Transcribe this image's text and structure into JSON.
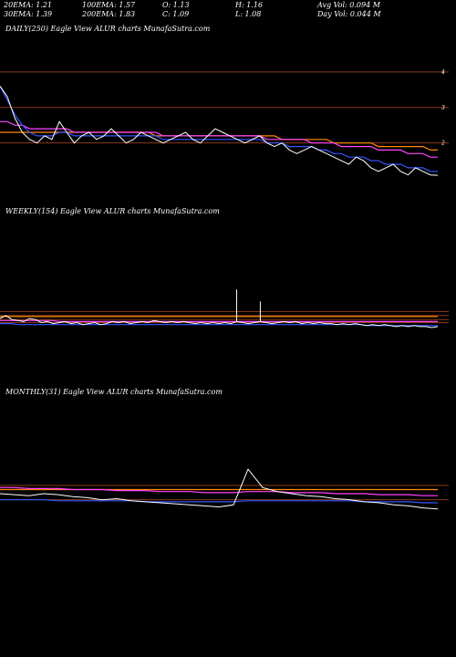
{
  "stats": {
    "ema20": "20EMA: 1.21",
    "ema100": "100EMA: 1.57",
    "open": "O: 1.13",
    "high": "H: 1.16",
    "avg_vol": "Avg Vol: 0.094  M",
    "ema30": "30EMA: 1.39",
    "ema200": "200EMA: 1.83",
    "close": "C: 1.09",
    "low": "L: 1.08",
    "day_vol": "Day Vol: 0.044  M"
  },
  "panels": {
    "daily_title": "DAILY(250) Eagle   View  ALUR charts MunafaSutra.com",
    "weekly_title": "WEEKLY(154) Eagle   View  ALUR charts MunafaSutra.com",
    "monthly_title": "MONTHLY(31) Eagle   View  ALUR charts MunafaSutra.com"
  },
  "colors": {
    "price": "#ffffff",
    "ema_blue": "#3355ff",
    "ema_magenta": "#ff44ff",
    "ema_orange": "#ff8800",
    "level_line": "#8b3a1a"
  },
  "chart_data": [
    {
      "type": "line",
      "panel": "daily",
      "ylim": [
        0.5,
        5
      ],
      "yticks": [
        "4",
        "3",
        "2"
      ],
      "ytick_values": [
        4,
        3,
        2
      ],
      "series": [
        {
          "key": "price",
          "values": [
            3.6,
            3.3,
            2.7,
            2.3,
            2.1,
            2.0,
            2.2,
            2.1,
            2.6,
            2.3,
            2.0,
            2.2,
            2.3,
            2.1,
            2.2,
            2.4,
            2.2,
            2.0,
            2.1,
            2.3,
            2.2,
            2.1,
            2.0,
            2.1,
            2.2,
            2.3,
            2.1,
            2.0,
            2.2,
            2.4,
            2.3,
            2.2,
            2.1,
            2.0,
            2.1,
            2.2,
            2.0,
            1.9,
            2.0,
            1.8,
            1.7,
            1.8,
            1.9,
            1.8,
            1.7,
            1.6,
            1.5,
            1.4,
            1.6,
            1.5,
            1.3,
            1.2,
            1.3,
            1.4,
            1.2,
            1.1,
            1.3,
            1.2,
            1.1,
            1.09
          ]
        },
        {
          "key": "ema_blue",
          "values": [
            3.6,
            3.2,
            2.8,
            2.5,
            2.3,
            2.2,
            2.2,
            2.2,
            2.3,
            2.3,
            2.2,
            2.2,
            2.2,
            2.2,
            2.2,
            2.2,
            2.2,
            2.2,
            2.2,
            2.2,
            2.2,
            2.2,
            2.1,
            2.1,
            2.1,
            2.1,
            2.1,
            2.1,
            2.1,
            2.1,
            2.1,
            2.1,
            2.1,
            2.1,
            2.1,
            2.1,
            2.0,
            2.0,
            2.0,
            1.9,
            1.9,
            1.9,
            1.9,
            1.8,
            1.8,
            1.7,
            1.7,
            1.6,
            1.6,
            1.6,
            1.5,
            1.5,
            1.4,
            1.4,
            1.4,
            1.3,
            1.3,
            1.3,
            1.2,
            1.2
          ]
        },
        {
          "key": "ema_magenta",
          "values": [
            2.6,
            2.6,
            2.5,
            2.5,
            2.4,
            2.4,
            2.4,
            2.4,
            2.4,
            2.4,
            2.3,
            2.3,
            2.3,
            2.3,
            2.3,
            2.3,
            2.3,
            2.3,
            2.3,
            2.3,
            2.3,
            2.3,
            2.2,
            2.2,
            2.2,
            2.2,
            2.2,
            2.2,
            2.2,
            2.2,
            2.2,
            2.2,
            2.2,
            2.2,
            2.2,
            2.2,
            2.1,
            2.1,
            2.1,
            2.1,
            2.1,
            2.1,
            2.0,
            2.0,
            2.0,
            2.0,
            1.9,
            1.9,
            1.9,
            1.9,
            1.9,
            1.8,
            1.8,
            1.8,
            1.8,
            1.7,
            1.7,
            1.7,
            1.6,
            1.6
          ]
        },
        {
          "key": "ema_orange",
          "values": [
            2.3,
            2.3,
            2.3,
            2.3,
            2.3,
            2.3,
            2.3,
            2.3,
            2.3,
            2.3,
            2.3,
            2.3,
            2.3,
            2.3,
            2.3,
            2.3,
            2.3,
            2.3,
            2.3,
            2.3,
            2.3,
            2.2,
            2.2,
            2.2,
            2.2,
            2.2,
            2.2,
            2.2,
            2.2,
            2.2,
            2.2,
            2.2,
            2.2,
            2.2,
            2.2,
            2.2,
            2.2,
            2.2,
            2.1,
            2.1,
            2.1,
            2.1,
            2.1,
            2.1,
            2.1,
            2.0,
            2.0,
            2.0,
            2.0,
            2.0,
            2.0,
            1.9,
            1.9,
            1.9,
            1.9,
            1.9,
            1.9,
            1.9,
            1.8,
            1.8
          ]
        }
      ],
      "levels": [
        4,
        3,
        2
      ]
    },
    {
      "type": "line",
      "panel": "weekly",
      "ylim": [
        0,
        12
      ],
      "series": [
        {
          "key": "price",
          "values": [
            1.9,
            2.2,
            1.8,
            1.7,
            1.6,
            1.9,
            1.8,
            1.5,
            1.6,
            1.4,
            1.5,
            1.6,
            1.4,
            1.5,
            1.3,
            1.4,
            1.5,
            1.3,
            1.4,
            1.6,
            1.5,
            1.6,
            1.4,
            1.5,
            1.6,
            1.5,
            1.7,
            1.6,
            1.5,
            1.6,
            1.5,
            1.6,
            1.5,
            1.4,
            1.5,
            1.4,
            1.5,
            1.4,
            1.5,
            1.4,
            1.6,
            1.5,
            1.4,
            1.5,
            1.6,
            1.5,
            1.4,
            1.5,
            1.6,
            1.5,
            1.6,
            1.4,
            1.5,
            1.4,
            1.5,
            1.4,
            1.4,
            1.3,
            1.4,
            1.3,
            1.4,
            1.3,
            1.2,
            1.3,
            1.2,
            1.3,
            1.2,
            1.1,
            1.2,
            1.1,
            1.2,
            1.1,
            1.1,
            1.0,
            1.1
          ]
        },
        {
          "key": "ema_blue",
          "values": [
            1.4,
            1.4,
            1.4,
            1.3,
            1.3,
            1.3,
            1.3,
            1.3,
            1.3,
            1.3,
            1.3,
            1.3,
            1.3,
            1.3,
            1.3,
            1.3,
            1.3,
            1.3,
            1.3,
            1.3,
            1.3,
            1.3,
            1.3,
            1.3,
            1.3,
            1.3,
            1.3,
            1.3,
            1.3,
            1.3,
            1.3,
            1.3,
            1.3,
            1.3,
            1.3,
            1.3,
            1.3,
            1.3,
            1.3,
            1.3,
            1.3,
            1.3,
            1.3,
            1.3,
            1.3,
            1.3,
            1.3,
            1.3,
            1.3,
            1.3,
            1.3,
            1.3,
            1.3,
            1.3,
            1.3,
            1.3,
            1.3,
            1.3,
            1.3,
            1.3,
            1.3,
            1.3,
            1.2,
            1.2,
            1.2,
            1.2,
            1.2,
            1.2,
            1.2,
            1.2,
            1.2,
            1.2,
            1.2,
            1.2,
            1.2
          ]
        },
        {
          "key": "ema_magenta",
          "values": [
            1.7,
            1.7,
            1.7,
            1.7,
            1.7,
            1.7,
            1.7,
            1.7,
            1.7,
            1.7,
            1.6,
            1.6,
            1.6,
            1.6,
            1.6,
            1.6,
            1.6,
            1.6,
            1.6,
            1.6,
            1.6,
            1.6,
            1.6,
            1.6,
            1.6,
            1.6,
            1.6,
            1.6,
            1.6,
            1.6,
            1.6,
            1.6,
            1.6,
            1.6,
            1.6,
            1.6,
            1.6,
            1.6,
            1.6,
            1.6,
            1.6,
            1.6,
            1.6,
            1.6,
            1.6,
            1.6,
            1.6,
            1.6,
            1.6,
            1.6,
            1.6,
            1.6,
            1.6,
            1.6,
            1.6,
            1.6,
            1.6,
            1.6,
            1.6,
            1.6,
            1.6,
            1.6,
            1.6,
            1.6,
            1.6,
            1.6,
            1.6,
            1.6,
            1.6,
            1.6,
            1.6,
            1.6,
            1.6,
            1.6,
            1.6
          ]
        },
        {
          "key": "ema_orange",
          "values": [
            2.1,
            2.1,
            2.1,
            2.1,
            2.1,
            2.1,
            2.1,
            2.1,
            2.1,
            2.1,
            2.1,
            2.1,
            2.1,
            2.1,
            2.1,
            2.1,
            2.1,
            2.1,
            2.1,
            2.1,
            2.1,
            2.1,
            2.1,
            2.1,
            2.1,
            2.1,
            2.1,
            2.1,
            2.1,
            2.1,
            2.1,
            2.1,
            2.1,
            2.1,
            2.1,
            2.1,
            2.1,
            2.1,
            2.1,
            2.1,
            2.1,
            2.1,
            2.1,
            2.1,
            2.1,
            2.1,
            2.1,
            2.1,
            2.1,
            2.1,
            2.1,
            2.1,
            2.1,
            2.1,
            2.1,
            2.1,
            2.1,
            2.1,
            2.1,
            2.1,
            2.1,
            2.1,
            2.1,
            2.1,
            2.1,
            2.1,
            2.1,
            2.1,
            2.1,
            2.1,
            2.1,
            2.1,
            2.1,
            2.1,
            2.1
          ]
        }
      ],
      "spikes": [
        {
          "index": 40,
          "value": 4.8
        },
        {
          "index": 44,
          "value": 3.6
        }
      ],
      "levels": [
        2.6,
        2.2,
        1.8,
        1.5
      ]
    },
    {
      "type": "line",
      "panel": "monthly",
      "ylim": [
        0,
        12
      ],
      "series": [
        {
          "key": "price",
          "values": [
            2.6,
            2.5,
            2.4,
            2.6,
            2.5,
            2.3,
            2.2,
            2.0,
            2.1,
            1.9,
            1.8,
            1.7,
            1.6,
            1.5,
            1.4,
            1.3,
            1.5,
            5.0,
            3.2,
            2.8,
            2.6,
            2.4,
            2.3,
            2.1,
            2.0,
            1.8,
            1.7,
            1.5,
            1.4,
            1.2,
            1.1
          ]
        },
        {
          "key": "ema_blue",
          "values": [
            2.0,
            2.0,
            2.0,
            2.0,
            1.9,
            1.9,
            1.9,
            1.9,
            1.9,
            1.9,
            1.8,
            1.8,
            1.8,
            1.8,
            1.8,
            1.8,
            1.8,
            1.9,
            1.9,
            1.9,
            1.9,
            1.9,
            1.9,
            1.9,
            1.9,
            1.8,
            1.8,
            1.8,
            1.8,
            1.7,
            1.7
          ]
        },
        {
          "key": "ema_magenta",
          "values": [
            3.2,
            3.2,
            3.1,
            3.1,
            3.1,
            3.0,
            3.0,
            3.0,
            2.9,
            2.9,
            2.9,
            2.8,
            2.8,
            2.8,
            2.7,
            2.7,
            2.7,
            2.8,
            2.8,
            2.8,
            2.7,
            2.7,
            2.7,
            2.6,
            2.6,
            2.6,
            2.5,
            2.5,
            2.5,
            2.4,
            2.4
          ]
        },
        {
          "key": "ema_orange",
          "values": [
            3.0,
            3.0,
            3.0,
            3.0,
            3.0,
            3.0,
            3.0,
            3.0,
            3.0,
            3.0,
            3.0,
            3.0,
            3.0,
            3.0,
            3.0,
            3.0,
            3.0,
            3.0,
            3.0,
            3.0,
            3.0,
            3.0,
            3.0,
            3.0,
            3.0,
            3.0,
            3.0,
            3.0,
            3.0,
            3.0,
            3.0
          ]
        }
      ],
      "levels": [
        3.4,
        2.0
      ]
    }
  ]
}
